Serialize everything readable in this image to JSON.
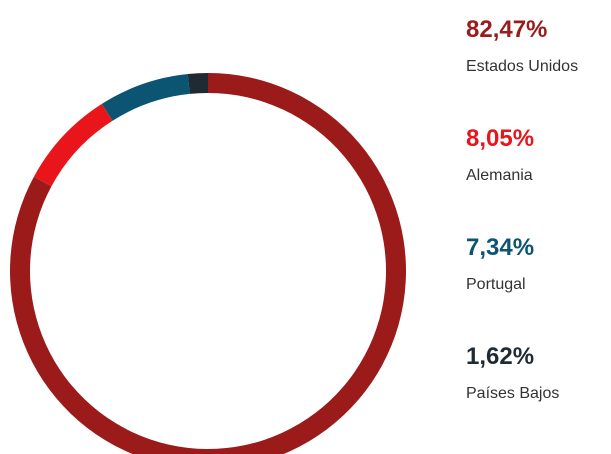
{
  "chart_data": {
    "type": "donut",
    "categories": [
      "Estados Unidos",
      "Alemania",
      "Portugal",
      "Países Bajos"
    ],
    "values": [
      82.47,
      8.05,
      7.34,
      1.62
    ],
    "value_labels": [
      "82,47%",
      "8,05%",
      "7,34%",
      "1,62%"
    ],
    "colors": [
      "#9b1b1b",
      "#e8161b",
      "#0b5472",
      "#1f2a33"
    ]
  }
}
